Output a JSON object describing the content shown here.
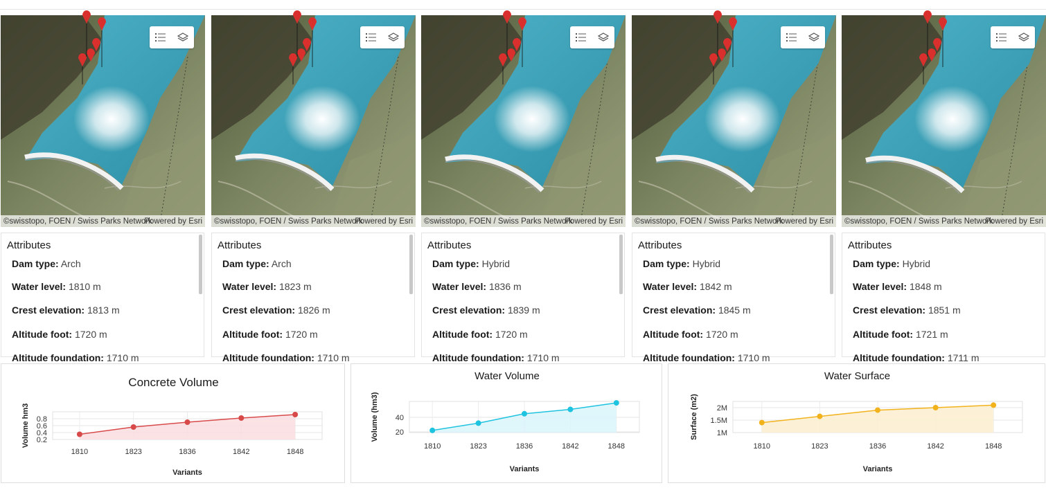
{
  "maps": [
    {
      "attribution_source": "©swisstopo, FOEN / Swiss Parks Network",
      "attribution_powered": "Powered by Esri",
      "legend_icon": "legend-list-icon",
      "layers_icon": "layers-icon"
    },
    {
      "attribution_source": "©swisstopo, FOEN / Swiss Parks Network",
      "attribution_powered": "Powered by Esri",
      "legend_icon": "legend-list-icon",
      "layers_icon": "layers-icon"
    },
    {
      "attribution_source": "©swisstopo, FOEN / Swiss Parks Network",
      "attribution_powered": "Powered by Esri",
      "legend_icon": "legend-list-icon",
      "layers_icon": "layers-icon"
    },
    {
      "attribution_source": "©swisstopo, FOEN / Swiss Parks Network",
      "attribution_powered": "Powered by Esri",
      "legend_icon": "legend-list-icon",
      "layers_icon": "layers-icon"
    },
    {
      "attribution_source": "©swisstopo, FOEN / Swiss Parks Network",
      "attribution_powered": "Powered by Esri",
      "legend_icon": "legend-list-icon",
      "layers_icon": "layers-icon"
    }
  ],
  "attributes": [
    {
      "title": "Attributes",
      "rows": [
        {
          "label": "Dam type:",
          "value": "Arch"
        },
        {
          "label": "Water level:",
          "value": "1810 m"
        },
        {
          "label": "Crest elevation:",
          "value": "1813 m"
        },
        {
          "label": "Altitude foot:",
          "value": "1720 m"
        },
        {
          "label": "Altitude foundation:",
          "value": "1710 m"
        }
      ]
    },
    {
      "title": "Attributes",
      "rows": [
        {
          "label": "Dam type:",
          "value": "Arch"
        },
        {
          "label": "Water level:",
          "value": "1823 m"
        },
        {
          "label": "Crest elevation:",
          "value": "1826 m"
        },
        {
          "label": "Altitude foot:",
          "value": "1720 m"
        },
        {
          "label": "Altitude foundation:",
          "value": "1710 m"
        }
      ]
    },
    {
      "title": "Attributes",
      "rows": [
        {
          "label": "Dam type:",
          "value": "Hybrid"
        },
        {
          "label": "Water level:",
          "value": "1836 m"
        },
        {
          "label": "Crest elevation:",
          "value": "1839 m"
        },
        {
          "label": "Altitude foot:",
          "value": "1720 m"
        },
        {
          "label": "Altitude foundation:",
          "value": "1710 m"
        }
      ]
    },
    {
      "title": "Attributes",
      "rows": [
        {
          "label": "Dam type:",
          "value": "Hybrid"
        },
        {
          "label": "Water level:",
          "value": "1842 m"
        },
        {
          "label": "Crest elevation:",
          "value": "1845 m"
        },
        {
          "label": "Altitude foot:",
          "value": "1720 m"
        },
        {
          "label": "Altitude foundation:",
          "value": "1710 m"
        }
      ]
    },
    {
      "title": "Attributes",
      "rows": [
        {
          "label": "Dam type:",
          "value": "Hybrid"
        },
        {
          "label": "Water level:",
          "value": "1848 m"
        },
        {
          "label": "Crest elevation:",
          "value": "1851 m"
        },
        {
          "label": "Altitude foot:",
          "value": "1721 m"
        },
        {
          "label": "Altitude foundation:",
          "value": "1711 m"
        }
      ]
    }
  ],
  "chart_data": [
    {
      "type": "line",
      "title": "Concrete Volume",
      "xlabel": "Variants",
      "ylabel": "Volume hm3",
      "categories": [
        "1810",
        "1823",
        "1836",
        "1842",
        "1848"
      ],
      "values": [
        0.35,
        0.56,
        0.7,
        0.82,
        0.92
      ],
      "yticks": [
        "0.2",
        "0.4",
        "0.6",
        "0.8"
      ],
      "ylim": [
        0.2,
        1.0
      ],
      "color": "#d84a4a",
      "fill": "#f9dde0",
      "grid": true
    },
    {
      "type": "line",
      "title": "Water Volume",
      "xlabel": "Variants",
      "ylabel": "Volume (hm3)",
      "categories": [
        "1810",
        "1823",
        "1836",
        "1842",
        "1848"
      ],
      "values": [
        22,
        32,
        45,
        51,
        60
      ],
      "yticks": [
        "20",
        "40"
      ],
      "ylim": [
        19,
        62
      ],
      "color": "#1ec3e0",
      "fill": "#d9f4fa",
      "grid": true
    },
    {
      "type": "line",
      "title": "Water Surface",
      "xlabel": "Variants",
      "ylabel": "Surface (m2)",
      "categories": [
        "1810",
        "1823",
        "1836",
        "1842",
        "1848"
      ],
      "values": [
        1400000,
        1650000,
        1900000,
        2000000,
        2100000
      ],
      "yticks": [
        "1M",
        "1.5M",
        "2M"
      ],
      "yticks_values": [
        1000000,
        1500000,
        2000000
      ],
      "ylim": [
        1000000,
        2250000
      ],
      "color": "#f2b21c",
      "fill": "#fcefcf",
      "grid": true
    }
  ]
}
